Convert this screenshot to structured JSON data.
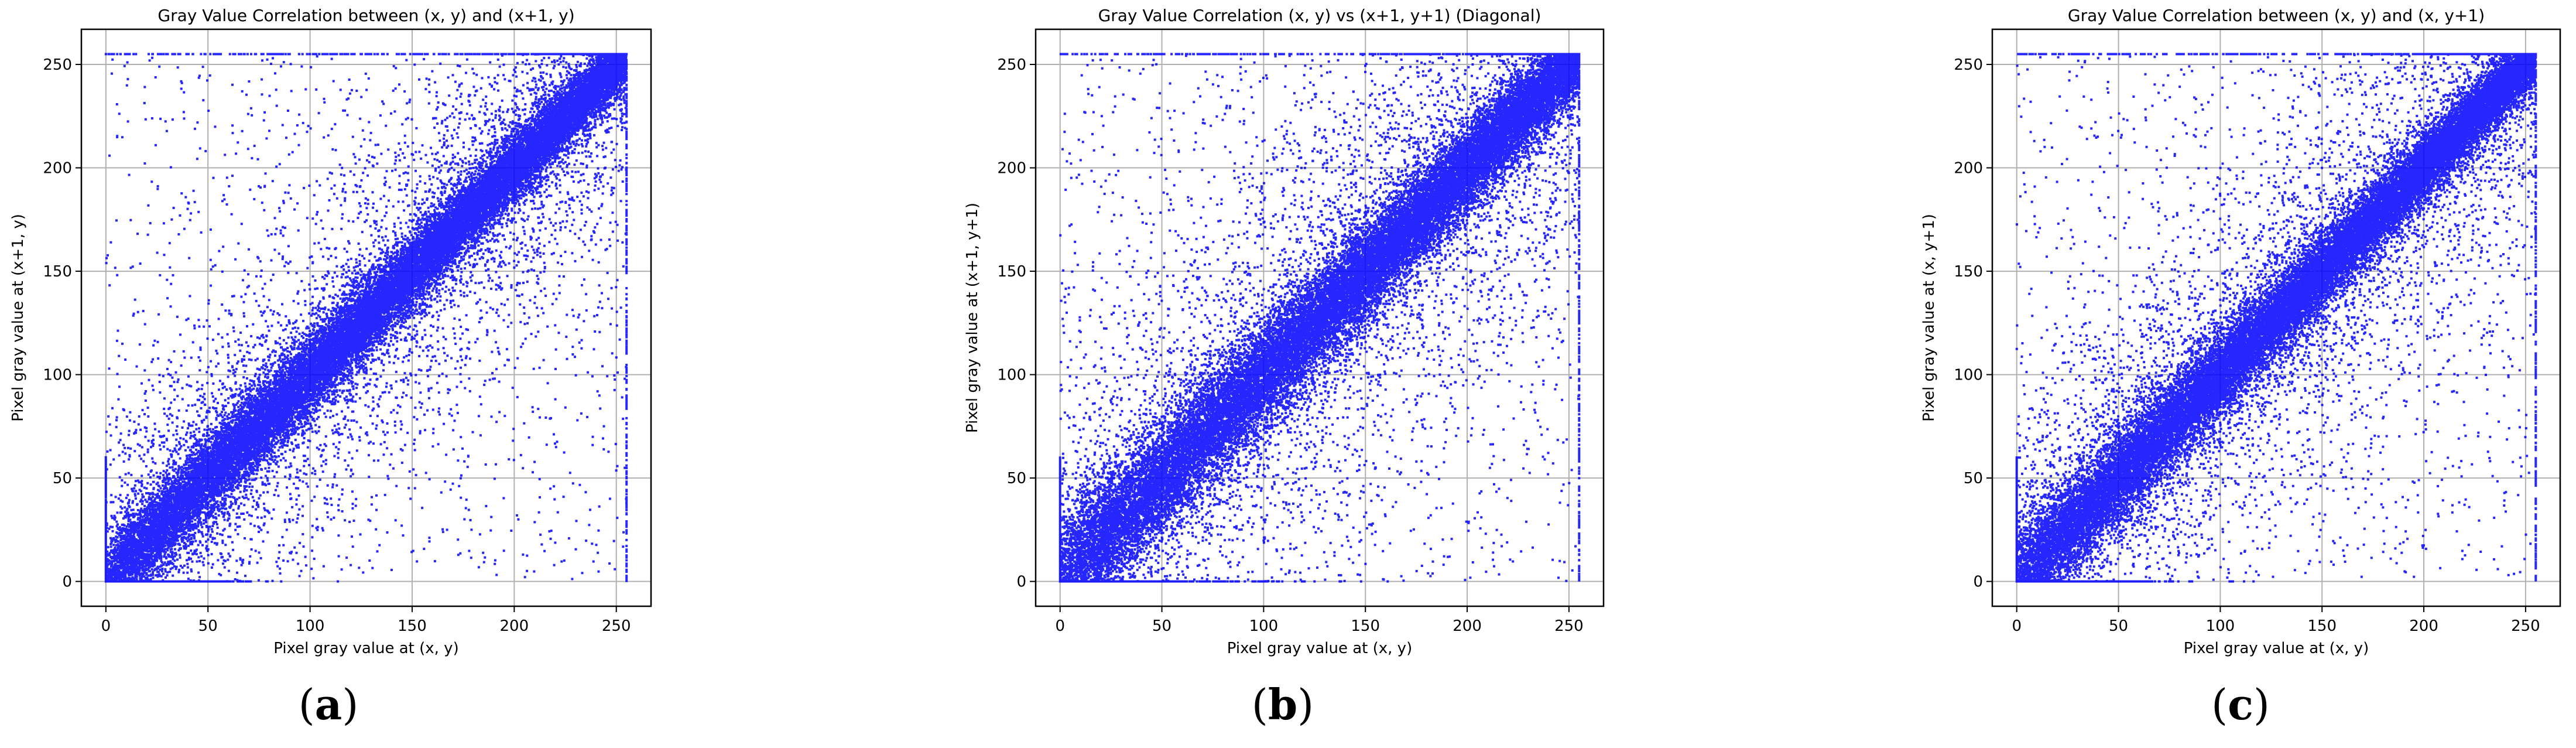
{
  "figure": {
    "colors": {
      "point": "#0000ff",
      "grid": "#b0b0b0",
      "axis": "#000000",
      "background": "#ffffff"
    }
  },
  "chart_data": [
    {
      "type": "scatter",
      "title": "Gray Value Correlation between (x, y) and (x+1, y)",
      "xlabel": "Pixel gray value at (x, y)",
      "ylabel": "Pixel gray value at (x+1, y)",
      "xlim": [
        -12,
        267
      ],
      "ylim": [
        -12,
        267
      ],
      "xticks": [
        0,
        50,
        100,
        150,
        200,
        250
      ],
      "yticks": [
        0,
        50,
        100,
        150,
        200,
        250
      ],
      "grid": true,
      "panel_label": "a",
      "pattern": {
        "relation": "y ≈ x",
        "core_spread_at_0": 14,
        "core_spread_at_255": 10,
        "low_value_clipping_x": 0,
        "low_value_clipping_y": 0,
        "saturation_value": 255
      }
    },
    {
      "type": "scatter",
      "title": "Gray Value Correlation (x, y) vs (x+1, y+1) (Diagonal)",
      "xlabel": "Pixel gray value at (x, y)",
      "ylabel": "Pixel gray value at (x+1, y+1)",
      "xlim": [
        -12,
        267
      ],
      "ylim": [
        -12,
        267
      ],
      "xticks": [
        0,
        50,
        100,
        150,
        200,
        250
      ],
      "yticks": [
        0,
        50,
        100,
        150,
        200,
        250
      ],
      "grid": true,
      "panel_label": "b",
      "pattern": {
        "relation": "y ≈ x",
        "core_spread_at_0": 20,
        "core_spread_at_255": 12,
        "low_value_clipping_x": 0,
        "low_value_clipping_y": 0,
        "saturation_value": 255
      }
    },
    {
      "type": "scatter",
      "title": "Gray Value Correlation between (x, y) and (x, y+1)",
      "xlabel": "Pixel gray value at (x, y)",
      "ylabel": "Pixel gray value at (x, y+1)",
      "xlim": [
        -12,
        267
      ],
      "ylim": [
        -12,
        267
      ],
      "xticks": [
        0,
        50,
        100,
        150,
        200,
        250
      ],
      "yticks": [
        0,
        50,
        100,
        150,
        200,
        250
      ],
      "grid": true,
      "panel_label": "c",
      "pattern": {
        "relation": "y ≈ x",
        "core_spread_at_0": 16,
        "core_spread_at_255": 9,
        "low_value_clipping_x": 0,
        "low_value_clipping_y": 0,
        "saturation_value": 255
      }
    }
  ]
}
